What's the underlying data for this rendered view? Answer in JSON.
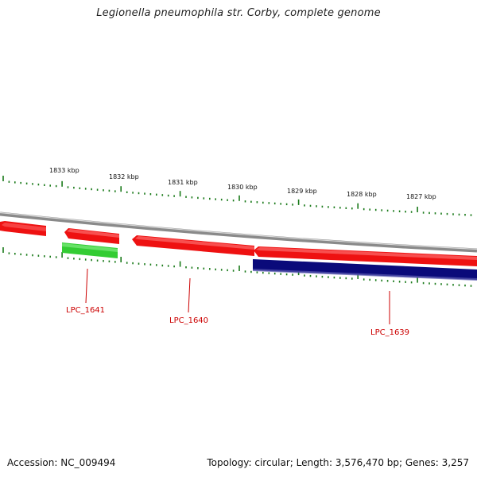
{
  "title": "Legionella pneumophila str. Corby, complete genome",
  "footer": {
    "accession": "Accession: NC_009494",
    "summary": "Topology: circular; Length: 3,576,470 bp; Genes: 3,257"
  },
  "kbp_labels": [
    "1833 kbp",
    "1832 kbp",
    "1831 kbp",
    "1830 kbp",
    "1829 kbp",
    "1828 kbp",
    "1827 kbp"
  ],
  "gene_labels": [
    "LPC_1641",
    "LPC_1640",
    "LPC_1639"
  ],
  "colors": {
    "forward_gene": "#ee1111",
    "reverse_gene_green": "#33cc33",
    "reverse_gene_navy": "#0a0a7a",
    "backbone": "#8a8a8a",
    "ticks": "#1a7a1a",
    "gene_label": "#cc0000"
  }
}
